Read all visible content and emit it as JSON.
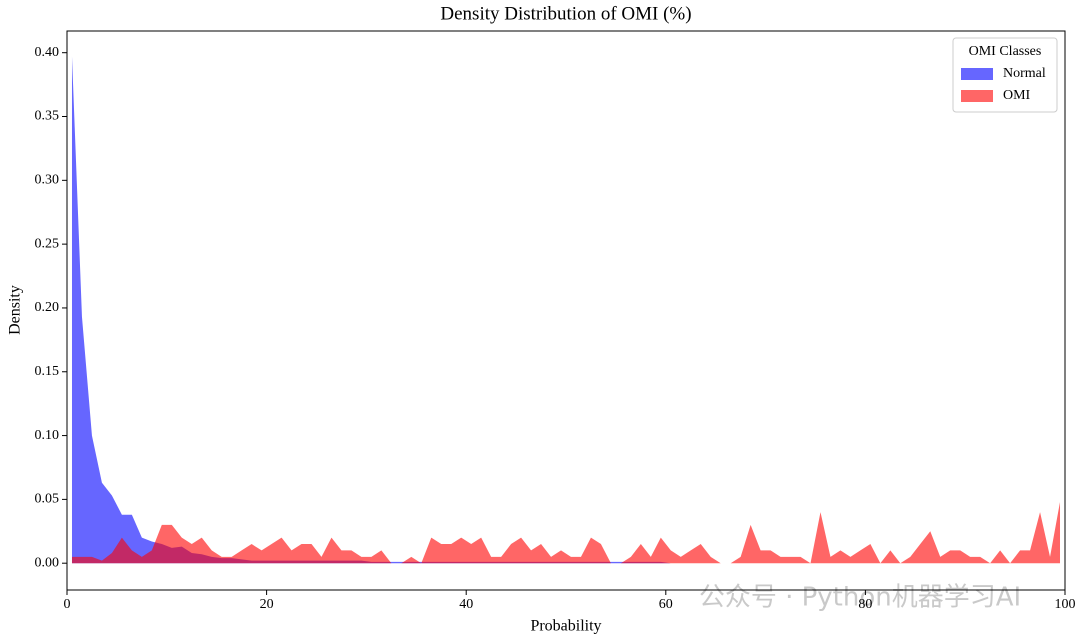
{
  "chart_data": {
    "type": "area",
    "title": "Density Distribution of OMI (%)",
    "xlabel": "Probability",
    "ylabel": "Density",
    "legend_title": "OMI Classes",
    "legend": "upper right",
    "alpha": 0.6,
    "watermark": "公众号 · Python机器学习AI",
    "x": [
      0.5,
      1.5,
      2.5,
      3.5,
      4.5,
      5.5,
      6.5,
      7.5,
      8.5,
      9.5,
      10.5,
      11.5,
      12.5,
      13.5,
      14.5,
      15.5,
      16.5,
      17.5,
      18.5,
      19.5,
      20.5,
      21.5,
      22.5,
      23.5,
      24.5,
      25.5,
      26.5,
      27.5,
      28.5,
      29.5,
      30.5,
      31.5,
      32.5,
      33.5,
      34.5,
      35.5,
      36.5,
      37.5,
      38.5,
      39.5,
      40.5,
      41.5,
      42.5,
      43.5,
      44.5,
      45.5,
      46.5,
      47.5,
      48.5,
      49.5,
      50.5,
      51.5,
      52.5,
      53.5,
      54.5,
      55.5,
      56.5,
      57.5,
      58.5,
      59.5,
      60.5,
      61.5,
      62.5,
      63.5,
      64.5,
      65.5,
      66.5,
      67.5,
      68.5,
      69.5,
      70.5,
      71.5,
      72.5,
      73.5,
      74.5,
      75.5,
      76.5,
      77.5,
      78.5,
      79.5,
      80.5,
      81.5,
      82.5,
      83.5,
      84.5,
      85.5,
      86.5,
      87.5,
      88.5,
      89.5,
      90.5,
      91.5,
      92.5,
      93.5,
      94.5,
      95.5,
      96.5,
      97.5,
      98.5,
      99.5
    ],
    "series": [
      {
        "name": "Normal",
        "color": "#0000ff",
        "values": [
          0.397,
          0.193,
          0.1,
          0.063,
          0.053,
          0.038,
          0.038,
          0.02,
          0.017,
          0.015,
          0.012,
          0.013,
          0.008,
          0.007,
          0.005,
          0.004,
          0.004,
          0.003,
          0.002,
          0.002,
          0.002,
          0.002,
          0.002,
          0.002,
          0.002,
          0.002,
          0.002,
          0.002,
          0.002,
          0.002,
          0.001,
          0.001,
          0.001,
          0.001,
          0.001,
          0.001,
          0.001,
          0.001,
          0.001,
          0.001,
          0.001,
          0.001,
          0.001,
          0.001,
          0.001,
          0.001,
          0.001,
          0.001,
          0.001,
          0.001,
          0.001,
          0.001,
          0.001,
          0.001,
          0.001,
          0.001,
          0.001,
          0.001,
          0.001,
          0.001,
          0,
          0,
          0,
          0,
          0,
          0,
          0,
          0,
          0,
          0,
          0,
          0,
          0,
          0,
          0,
          0,
          0,
          0,
          0,
          0,
          0,
          0,
          0,
          0,
          0,
          0,
          0,
          0,
          0,
          0,
          0,
          0,
          0,
          0,
          0,
          0,
          0,
          0,
          0,
          0
        ]
      },
      {
        "name": "OMI",
        "color": "#ff0000",
        "values": [
          0.005,
          0.005,
          0.005,
          0.002,
          0.008,
          0.02,
          0.01,
          0.005,
          0.01,
          0.03,
          0.03,
          0.02,
          0.015,
          0.02,
          0.01,
          0.005,
          0.005,
          0.01,
          0.015,
          0.01,
          0.015,
          0.02,
          0.01,
          0.015,
          0.015,
          0.005,
          0.02,
          0.01,
          0.01,
          0.005,
          0.005,
          0.01,
          0,
          0,
          0.005,
          0,
          0.02,
          0.015,
          0.015,
          0.02,
          0.015,
          0.02,
          0.005,
          0.005,
          0.015,
          0.02,
          0.01,
          0.015,
          0.005,
          0.01,
          0.005,
          0.005,
          0.02,
          0.015,
          0,
          0,
          0.005,
          0.015,
          0.005,
          0.02,
          0.01,
          0.005,
          0.01,
          0.015,
          0.005,
          0,
          0,
          0.005,
          0.03,
          0.01,
          0.01,
          0.005,
          0.005,
          0.005,
          0,
          0.04,
          0.005,
          0.01,
          0.005,
          0.01,
          0.015,
          0,
          0.01,
          0,
          0.005,
          0.015,
          0.025,
          0.005,
          0.01,
          0.01,
          0.005,
          0.005,
          0,
          0.01,
          0,
          0.01,
          0.01,
          0.04,
          0.005,
          0.048
        ]
      }
    ],
    "xlim": [
      0,
      100
    ],
    "ylim": [
      -0.021,
      0.417
    ],
    "xticks": [
      0,
      20,
      40,
      60,
      80,
      100
    ],
    "yticks": [
      {
        "value": 0,
        "label": "0.00"
      },
      {
        "value": 0.05,
        "label": "0.05"
      },
      {
        "value": 0.1,
        "label": "0.10"
      },
      {
        "value": 0.15,
        "label": "0.15"
      },
      {
        "value": 0.2,
        "label": "0.20"
      },
      {
        "value": 0.25,
        "label": "0.25"
      },
      {
        "value": 0.3,
        "label": "0.30"
      },
      {
        "value": 0.35,
        "label": "0.35"
      },
      {
        "value": 0.4,
        "label": "0.40"
      }
    ]
  }
}
